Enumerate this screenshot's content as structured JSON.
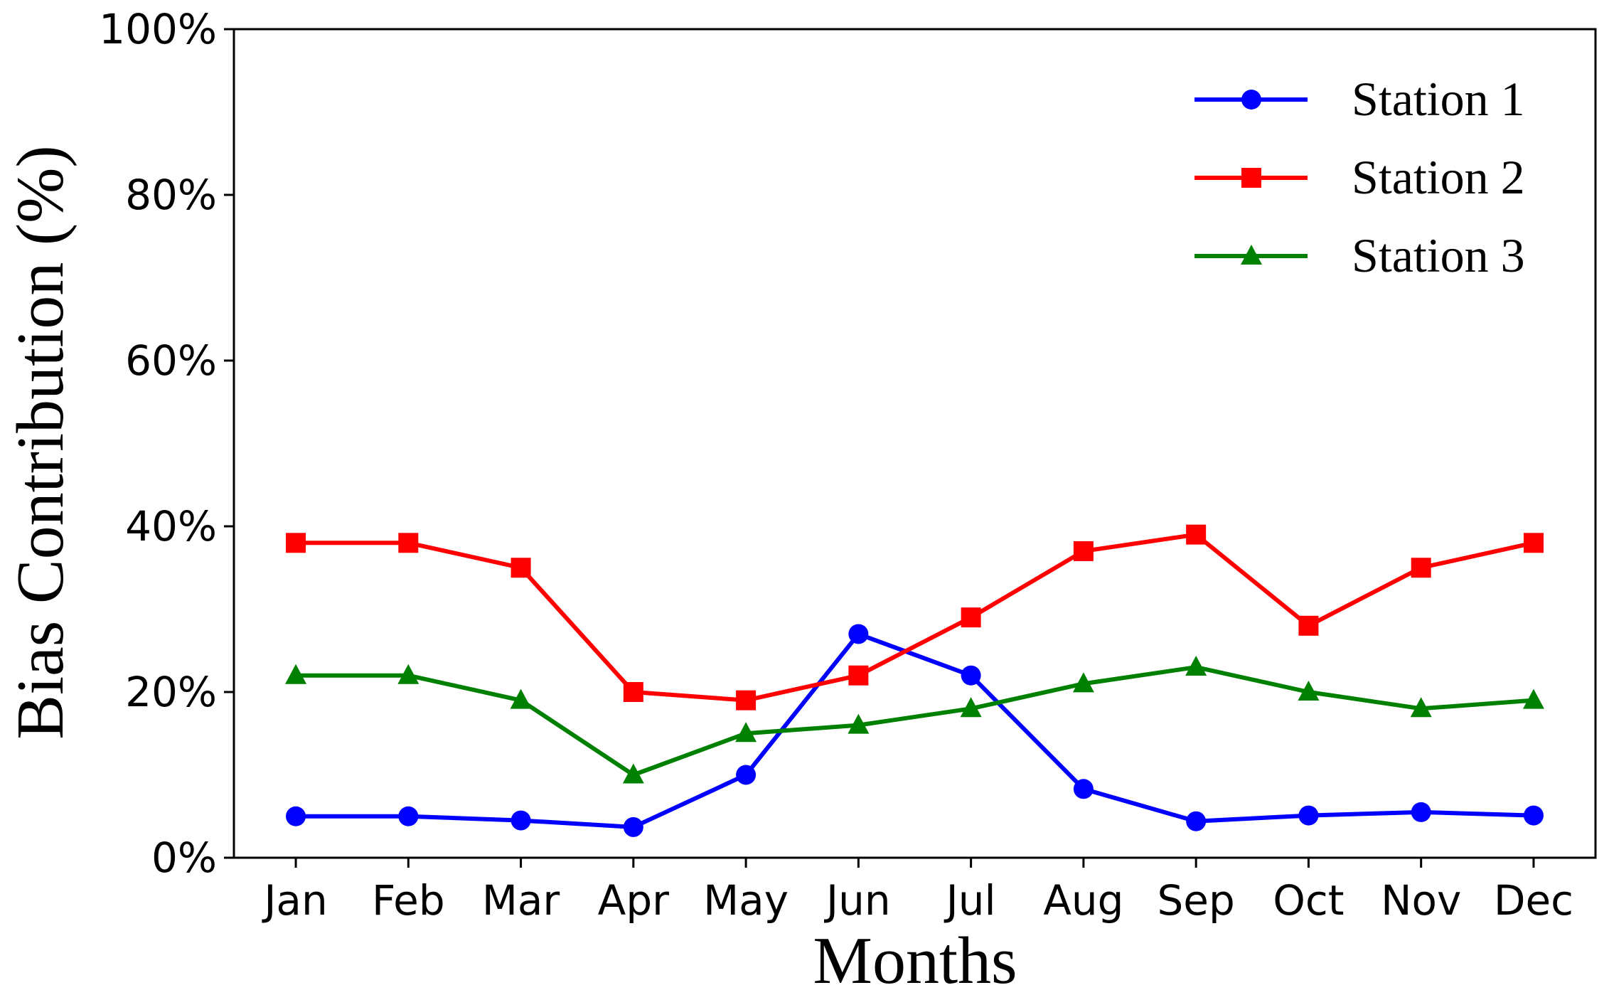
{
  "chart_data": {
    "type": "line",
    "xlabel": "Months",
    "ylabel": "Bias Contribution (%)",
    "categories": [
      "Jan",
      "Feb",
      "Mar",
      "Apr",
      "May",
      "Jun",
      "Jul",
      "Aug",
      "Sep",
      "Oct",
      "Nov",
      "Dec"
    ],
    "series": [
      {
        "name": "Station 1",
        "color": "#0000ff",
        "marker": "circle",
        "values": [
          5,
          5,
          4.5,
          3.7,
          10,
          27,
          22,
          8.3,
          4.4,
          5.1,
          5.5,
          5.1
        ]
      },
      {
        "name": "Station 2",
        "color": "#ff0000",
        "marker": "square",
        "values": [
          38,
          38,
          35,
          20,
          19,
          22,
          29,
          37,
          39,
          28,
          35,
          38
        ]
      },
      {
        "name": "Station 3",
        "color": "#008000",
        "marker": "triangle",
        "values": [
          22,
          22,
          19,
          10,
          15,
          16,
          18,
          21,
          23,
          20,
          18,
          19
        ]
      }
    ],
    "ylim": [
      0,
      100
    ],
    "yticks": [
      {
        "value": 0,
        "label": "0%"
      },
      {
        "value": 20,
        "label": "20%"
      },
      {
        "value": 40,
        "label": "40%"
      },
      {
        "value": 60,
        "label": "60%"
      },
      {
        "value": 80,
        "label": "80%"
      },
      {
        "value": 100,
        "label": "100%"
      }
    ],
    "grid": false,
    "legend": "upper right"
  }
}
